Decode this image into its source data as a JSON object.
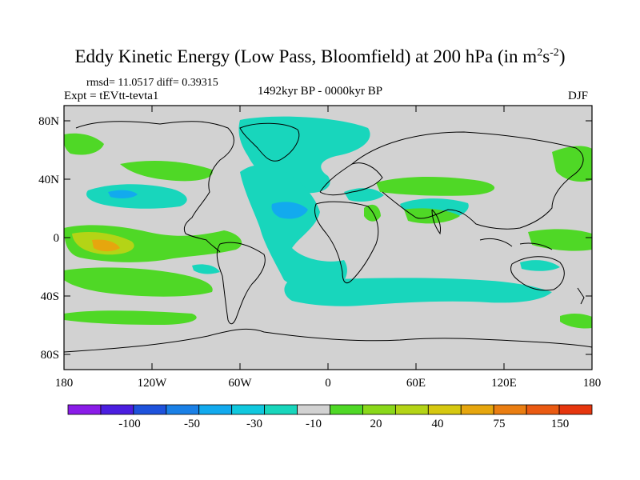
{
  "header": {
    "title_main": "Eddy Kinetic Energy (Low Pass, Bloomfield) at 200 hPa (in m",
    "title_sup1": "2",
    "title_s": "s",
    "title_sup2": "-2",
    "title_close": ")",
    "stats": "rmsd= 11.0517 diff= 0.39315",
    "experiment": "Expt = tEVtt-tevta1",
    "period": "1492kyr BP - 0000kyr BP",
    "season": "DJF"
  },
  "axes": {
    "y_ticks": [
      "80N",
      "40N",
      "0",
      "40S",
      "80S"
    ],
    "x_ticks": [
      "180",
      "120W",
      "60W",
      "0",
      "60E",
      "120E",
      "180"
    ]
  },
  "colorbar": {
    "colors": [
      "#8a1ce8",
      "#4b1ee0",
      "#1e52dc",
      "#1a80e6",
      "#12aaee",
      "#10c8de",
      "#18d6bc",
      "#d2d2d2",
      "#4fd826",
      "#8ad81a",
      "#b4d416",
      "#d6c810",
      "#e6a60e",
      "#ea7e12",
      "#ea5a12",
      "#e6360e"
    ],
    "labels": [
      "-100",
      "-50",
      "-30",
      "-10",
      "20",
      "40",
      "75",
      "150"
    ]
  },
  "palette": {
    "land_background": "#d2d2d2",
    "coast": "#000000"
  }
}
